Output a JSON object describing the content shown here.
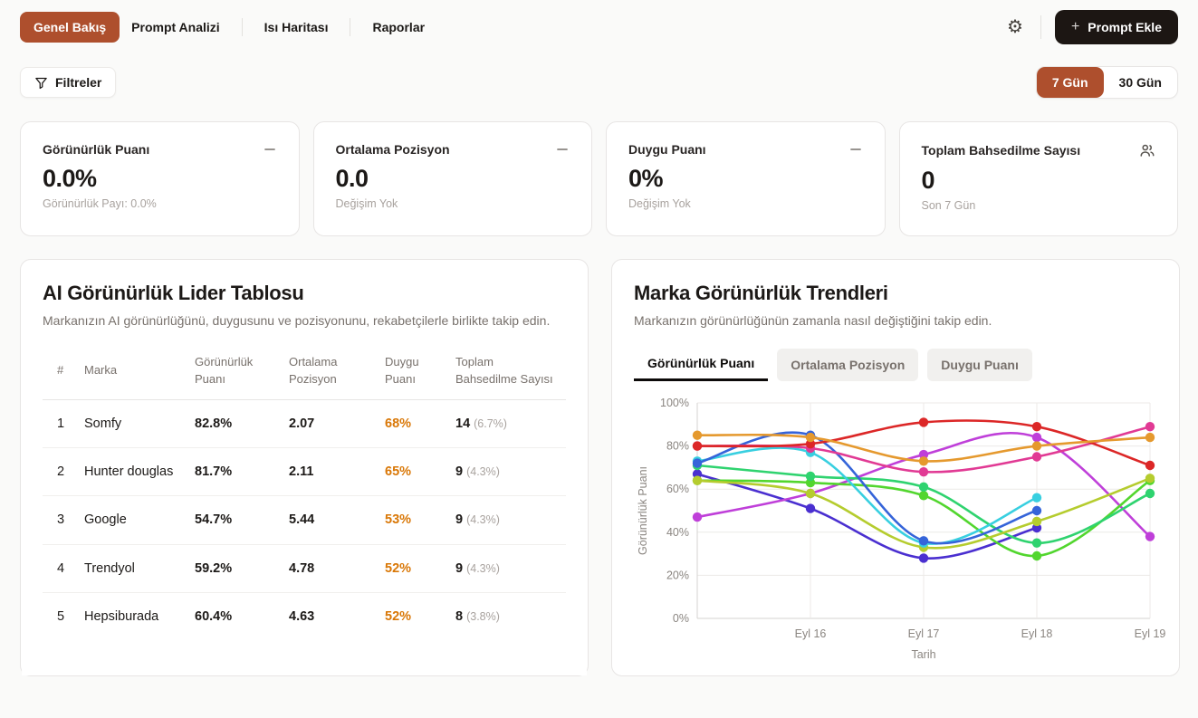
{
  "colors": {
    "accent": "#ae4f2d",
    "dark_button": "#1c1613",
    "sentiment": "#d97706",
    "page_bg": "#fafaf9",
    "card_border": "#e7e5e4"
  },
  "nav": {
    "tabs": [
      {
        "label": "Genel Bakış",
        "active": true
      },
      {
        "label": "Prompt Analizi",
        "active": false
      },
      {
        "label": "Isı Haritası",
        "active": false
      },
      {
        "label": "Raporlar",
        "active": false
      }
    ],
    "add_button": {
      "plus": "+",
      "label": "Prompt Ekle"
    }
  },
  "filters": {
    "button_label": "Filtreler"
  },
  "range_toggle": {
    "options": [
      {
        "label": "7 Gün",
        "active": true
      },
      {
        "label": "30 Gün",
        "active": false
      }
    ]
  },
  "metrics": [
    {
      "title": "Görünürlük Puanı",
      "value": "0.0%",
      "subtitle": "Görünürlük Payı: 0.0%",
      "icon": "minus-icon"
    },
    {
      "title": "Ortalama Pozisyon",
      "value": "0.0",
      "subtitle": "Değişim Yok",
      "icon": "minus-icon"
    },
    {
      "title": "Duygu Puanı",
      "value": "0%",
      "subtitle": "Değişim Yok",
      "icon": "minus-icon"
    },
    {
      "title": "Toplam Bahsedilme Sayısı",
      "value": "0",
      "subtitle": "Son 7 Gün",
      "icon": "users-icon"
    }
  ],
  "leaderboard": {
    "title": "AI Görünürlük Lider Tablosu",
    "subtitle": "Markanızın AI görünürlüğünü, duygusunu ve pozisyonunu, rekabetçilerle birlikte takip edin.",
    "columns": [
      "#",
      "Marka",
      "Görünürlük Puanı",
      "Ortalama Pozisyon",
      "Duygu Puanı",
      "Toplam Bahsedilme Sayısı"
    ],
    "rows": [
      {
        "rank": "1",
        "brand": "Somfy",
        "visibility": "82.8%",
        "position": "2.07",
        "sentiment": "68%",
        "mentions": "14",
        "mentions_pct": "(6.7%)"
      },
      {
        "rank": "2",
        "brand": "Hunter douglas",
        "visibility": "81.7%",
        "position": "2.11",
        "sentiment": "65%",
        "mentions": "9",
        "mentions_pct": "(4.3%)"
      },
      {
        "rank": "3",
        "brand": "Google",
        "visibility": "54.7%",
        "position": "5.44",
        "sentiment": "53%",
        "mentions": "9",
        "mentions_pct": "(4.3%)"
      },
      {
        "rank": "4",
        "brand": "Trendyol",
        "visibility": "59.2%",
        "position": "4.78",
        "sentiment": "52%",
        "mentions": "9",
        "mentions_pct": "(4.3%)"
      },
      {
        "rank": "5",
        "brand": "Hepsiburada",
        "visibility": "60.4%",
        "position": "4.63",
        "sentiment": "52%",
        "mentions": "8",
        "mentions_pct": "(3.8%)"
      }
    ]
  },
  "trends": {
    "title": "Marka Görünürlük Trendleri",
    "subtitle": "Markanızın görünürlüğünün zamanla nasıl değiştiğini takip edin.",
    "tabs": [
      {
        "label": "Görünürlük Puanı",
        "active": true
      },
      {
        "label": "Ortalama Pozisyon",
        "active": false
      },
      {
        "label": "Duygu Puanı",
        "active": false
      }
    ]
  },
  "chart_data": {
    "type": "line",
    "xlabel": "Tarih",
    "ylabel": "Görünürlük Puanı",
    "x_columns": 5,
    "x_tick_labels": [
      "",
      "Eyl 16",
      "Eyl 17",
      "Eyl 18",
      "Eyl 19"
    ],
    "y_ticks": [
      "0%",
      "20%",
      "40%",
      "60%",
      "80%",
      "100%"
    ],
    "ylim": [
      0,
      100
    ],
    "grid": true,
    "legend": "none",
    "series": [
      {
        "name": "series-indigo",
        "color": "#4a2fd0",
        "values": [
          67,
          51,
          28,
          42,
          null
        ]
      },
      {
        "name": "series-violet",
        "color": "#bf3fd9",
        "values": [
          47,
          58,
          76,
          84,
          38
        ]
      },
      {
        "name": "series-bright-green",
        "color": "#52d62e",
        "values": [
          64,
          63,
          57,
          29,
          64
        ]
      },
      {
        "name": "series-emerald",
        "color": "#2fd36f",
        "values": [
          71,
          66,
          61,
          35,
          58
        ]
      },
      {
        "name": "series-lime",
        "color": "#b5cc2e",
        "values": [
          64,
          58,
          33,
          45,
          65
        ]
      },
      {
        "name": "series-cyan",
        "color": "#38cfe0",
        "values": [
          73,
          77,
          35,
          56,
          null
        ]
      },
      {
        "name": "series-blue",
        "color": "#3564d9",
        "values": [
          72,
          85,
          36,
          50,
          null
        ]
      },
      {
        "name": "series-pink",
        "color": "#e13a94",
        "values": [
          80,
          79,
          68,
          75,
          89
        ]
      },
      {
        "name": "series-red",
        "color": "#dc2727",
        "values": [
          80,
          81,
          91,
          89,
          71
        ]
      },
      {
        "name": "series-orange",
        "color": "#e5992e",
        "values": [
          85,
          84,
          73,
          80,
          84
        ]
      }
    ]
  }
}
